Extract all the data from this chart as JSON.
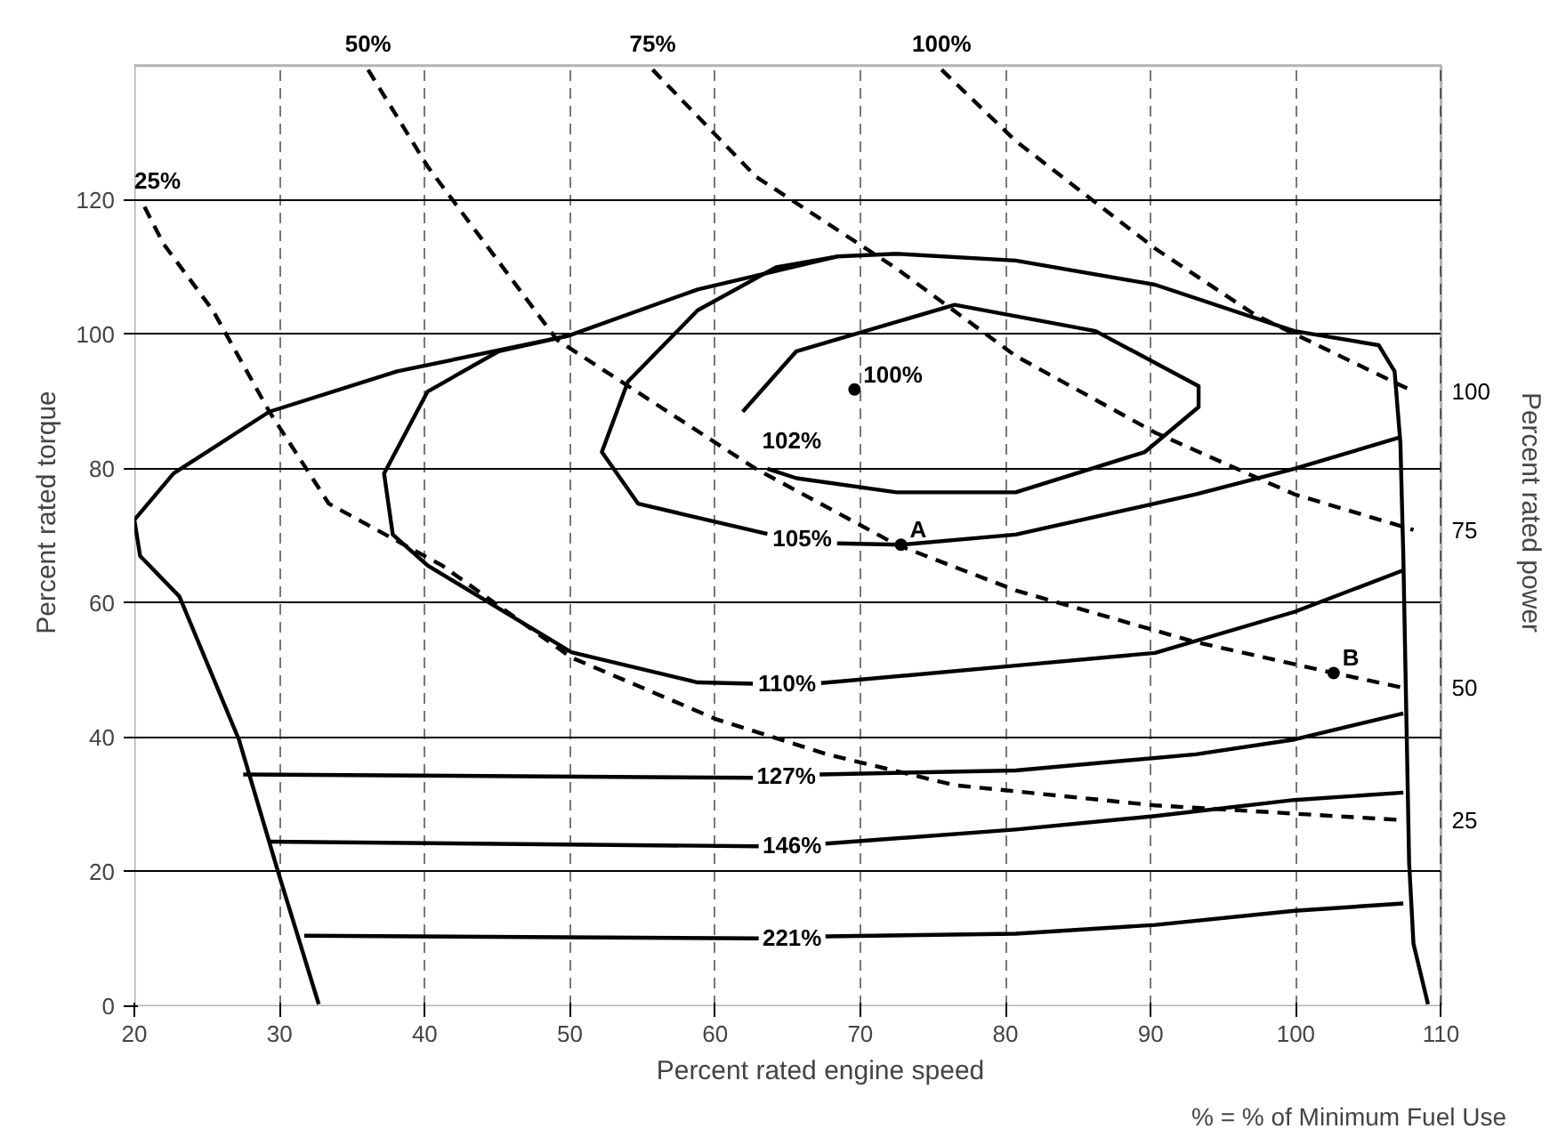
{
  "chart_data": {
    "type": "line",
    "xlabel": "Percent rated engine speed",
    "ylabel": "Percent rated torque",
    "y2label": "Percent rated power",
    "xlim": [
      20,
      110
    ],
    "ylim": [
      0,
      140
    ],
    "xticks": [
      20,
      30,
      40,
      50,
      60,
      70,
      80,
      90,
      100,
      110
    ],
    "yticks": [
      0,
      20,
      40,
      60,
      80,
      100,
      120
    ],
    "grid": true,
    "marker": "none",
    "series": [
      {
        "color": "#000000",
        "x": [
          32.7,
          29.9,
          27.2,
          23.1,
          20.4,
          20,
          22.7,
          29.3,
          38.1,
          49.9,
          58.8,
          68.4,
          72.5,
          80.7,
          90.3,
          99.9,
          105.7,
          106.8,
          107.2,
          107.4,
          107.8,
          108.1,
          109.1
        ],
        "values": [
          0.3,
          20,
          39.7,
          61,
          67,
          72.4,
          79.3,
          88.5,
          94.5,
          99.8,
          106.7,
          111.6,
          112,
          111,
          107.4,
          100.5,
          98.4,
          94.5,
          83.8,
          67,
          21.4,
          9.3,
          0.3
        ]
      },
      {
        "name": "102%",
        "color": "#000000",
        "x": [
          61.9,
          65.6,
          76.5,
          86.2,
          93.3,
          93.3,
          89.6,
          80.7,
          72.5,
          65.6,
          63.6
        ],
        "values": [
          88.5,
          97.5,
          104.4,
          100.5,
          92.3,
          89.2,
          82.5,
          76.5,
          76.5,
          78.6,
          80
        ]
      },
      {
        "name": "105%",
        "color": "#000000",
        "x": [
          68.4,
          64.2,
          58.8,
          54,
          52.2,
          54.7,
          63.6,
          66,
          68.4,
          72.8,
          80.7,
          93.1,
          99.9,
          107.2
        ],
        "values": [
          111.6,
          110,
          103.6,
          93,
          82.5,
          74.8,
          70.3,
          null,
          68.9,
          68.7,
          70.2,
          76.2,
          80,
          84.7
        ]
      },
      {
        "name": "110%",
        "color": "#000000",
        "x": [
          49.9,
          45.1,
          40.2,
          37.2,
          37.8,
          40.2,
          50.1,
          58.8,
          62.6,
          65,
          67.3,
          80.7,
          90.3,
          99.9,
          107.4
        ],
        "values": [
          99.8,
          97.5,
          91.5,
          79.3,
          70.2,
          65.6,
          52.7,
          48.2,
          48,
          null,
          48.1,
          50.7,
          52.6,
          58.7,
          64.9
        ]
      },
      {
        "name": "127%",
        "color": "#000000",
        "x": [
          27.5,
          62.6,
          64.9,
          67.2,
          80.7,
          93.1,
          99.9,
          107.4
        ],
        "values": [
          34.5,
          34,
          null,
          34.5,
          35.1,
          37.5,
          39.7,
          43.6
        ]
      },
      {
        "name": "146%",
        "color": "#000000",
        "x": [
          29.3,
          63,
          65.3,
          67.6,
          80.7,
          90.3,
          99.9,
          107.4
        ],
        "values": [
          24.5,
          23.8,
          null,
          24.2,
          26.3,
          28.3,
          30.7,
          31.8
        ]
      },
      {
        "name": "221%",
        "color": "#000000",
        "x": [
          31.7,
          63,
          65.3,
          67.6,
          80.7,
          90.3,
          99.9,
          107.4
        ],
        "values": [
          10.5,
          10.1,
          null,
          10.4,
          10.8,
          12.1,
          14.2,
          15.3
        ]
      },
      {
        "name": "25%",
        "color": "#000000",
        "line_style": "dashed",
        "x": [
          20.7,
          22,
          25.4,
          29.3,
          33.4,
          41.2,
          50.1,
          60.1,
          67.7,
          76.5,
          90.3,
          107.4
        ],
        "values": [
          119,
          113.5,
          103.6,
          88.5,
          74.8,
          65.6,
          51.9,
          42.7,
          37.5,
          32.9,
          29.9,
          27.7
        ]
      },
      {
        "name": "50%",
        "color": "#000000",
        "line_style": "dashed",
        "x": [
          36.1,
          40.2,
          49.1,
          62.8,
          72.5,
          80.7,
          93.1,
          102.6,
          107.4
        ],
        "values": [
          139.4,
          125,
          99.2,
          80,
          68.7,
          61.9,
          54.2,
          49.6,
          47.4
        ]
      },
      {
        "name": "75%",
        "color": "#000000",
        "line_style": "dashed",
        "x": [
          55.7,
          62.8,
          72.5,
          80.7,
          90.3,
          99.9,
          108.1
        ],
        "values": [
          139.4,
          123.5,
          109.8,
          96.8,
          85.4,
          76.2,
          70.9
        ]
      },
      {
        "name": "100%",
        "color": "#000000",
        "line_style": "dashed",
        "x": [
          75.6,
          80.7,
          90.3,
          97.2,
          108.1
        ],
        "values": [
          139.4,
          128.8,
          112.8,
          102.9,
          91.5
        ]
      },
      {
        "type": "scatter",
        "marker": "circle",
        "color": "#000000",
        "x": [
          69.6,
          72.8,
          102.6
        ],
        "values": [
          91.8,
          68.7,
          49.6
        ]
      }
    ],
    "annotations": [
      {
        "text": "100%",
        "x": 69.6,
        "y": 91.8
      },
      {
        "text": "A",
        "x": 72.8,
        "y": 68.7
      },
      {
        "text": "B",
        "x": 102.6,
        "y": 49.6
      },
      {
        "text": "100",
        "x": 108.1,
        "y": 91.5
      },
      {
        "text": "75",
        "x": 108.1,
        "y": 70.9
      },
      {
        "text": "50",
        "x": 107.4,
        "y": 47.4
      },
      {
        "text": "25",
        "x": 107.4,
        "y": 27.7
      },
      "% = % of Minimum Fuel Use"
    ]
  }
}
